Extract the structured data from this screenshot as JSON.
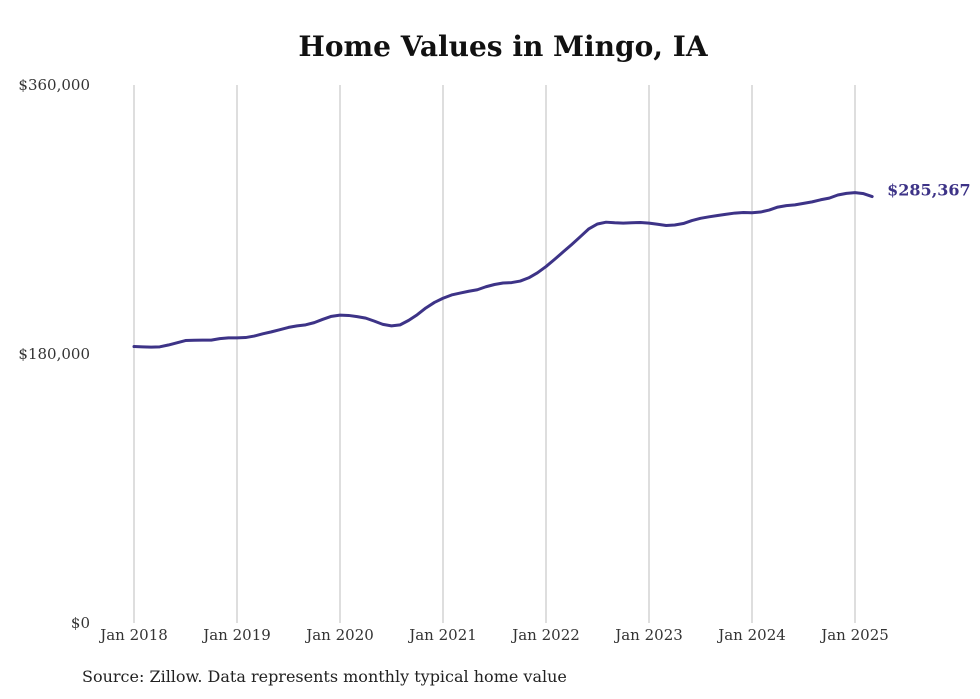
{
  "chart_data": {
    "type": "line",
    "title": "Home Values in Mingo, IA",
    "xlabel": "",
    "ylabel": "",
    "x_ticks": [
      "2018-01",
      "2019-01",
      "2020-01",
      "2021-01",
      "2022-01",
      "2023-01",
      "2024-01",
      "2025-01"
    ],
    "x_tick_labels": [
      "Jan 2018",
      "Jan 2019",
      "Jan 2020",
      "Jan 2021",
      "Jan 2022",
      "Jan 2023",
      "Jan 2024",
      "Jan 2025"
    ],
    "y_ticks": [
      0,
      180000,
      360000
    ],
    "y_tick_labels": [
      "$0",
      "$180,000",
      "$360,000"
    ],
    "ylim": [
      0,
      360000
    ],
    "xlim": [
      "2018-01",
      "2025-03"
    ],
    "grid": "vertical",
    "color": "#3d3387",
    "series": [
      {
        "name": "",
        "x": [
          "2018-01",
          "2018-02",
          "2018-03",
          "2018-04",
          "2018-05",
          "2018-06",
          "2018-07",
          "2018-08",
          "2018-09",
          "2018-10",
          "2018-11",
          "2018-12",
          "2019-01",
          "2019-02",
          "2019-03",
          "2019-04",
          "2019-05",
          "2019-06",
          "2019-07",
          "2019-08",
          "2019-09",
          "2019-10",
          "2019-11",
          "2019-12",
          "2020-01",
          "2020-02",
          "2020-03",
          "2020-04",
          "2020-05",
          "2020-06",
          "2020-07",
          "2020-08",
          "2020-09",
          "2020-10",
          "2020-11",
          "2020-12",
          "2021-01",
          "2021-02",
          "2021-03",
          "2021-04",
          "2021-05",
          "2021-06",
          "2021-07",
          "2021-08",
          "2021-09",
          "2021-10",
          "2021-11",
          "2021-12",
          "2022-01",
          "2022-02",
          "2022-03",
          "2022-04",
          "2022-05",
          "2022-06",
          "2022-07",
          "2022-08",
          "2022-09",
          "2022-10",
          "2022-11",
          "2022-12",
          "2023-01",
          "2023-02",
          "2023-03",
          "2023-04",
          "2023-05",
          "2023-06",
          "2023-07",
          "2023-08",
          "2023-09",
          "2023-10",
          "2023-11",
          "2023-12",
          "2024-01",
          "2024-02",
          "2024-03",
          "2024-04",
          "2024-05",
          "2024-06",
          "2024-07",
          "2024-08",
          "2024-09",
          "2024-10",
          "2024-11",
          "2024-12",
          "2025-01",
          "2025-02",
          "2025-03"
        ],
        "values": [
          185000,
          184800,
          184600,
          184800,
          186000,
          187500,
          189000,
          189200,
          189300,
          189300,
          190300,
          190800,
          190800,
          191000,
          192000,
          193500,
          194800,
          196300,
          197800,
          198800,
          199500,
          201000,
          203200,
          205200,
          206000,
          205800,
          205000,
          204000,
          202000,
          199800,
          198800,
          199500,
          202500,
          206300,
          210800,
          214500,
          217300,
          219500,
          220800,
          222000,
          223000,
          225000,
          226500,
          227500,
          227800,
          228800,
          231000,
          234300,
          238500,
          243300,
          248300,
          253300,
          258500,
          263800,
          267000,
          268200,
          267800,
          267600,
          267800,
          268000,
          267600,
          266800,
          266000,
          266300,
          267300,
          269300,
          270800,
          271800,
          272700,
          273500,
          274300,
          274700,
          274500,
          275000,
          276300,
          278300,
          279300,
          279800,
          280800,
          281800,
          283200,
          284300,
          286400,
          287500,
          288000,
          287300,
          285367
        ]
      }
    ],
    "end_label": "$285,367",
    "annotation": "Source: Zillow. Data represents monthly typical home value"
  }
}
